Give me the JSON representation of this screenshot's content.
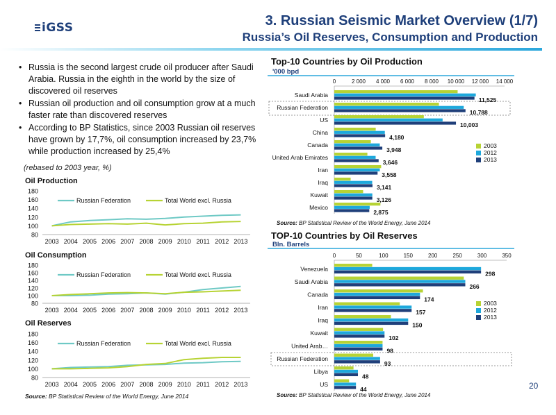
{
  "header": {
    "logo": "iGSS",
    "title": "3. Russian Seismic Market Overview (1/7)",
    "subtitle": "Russia’s Oil Reserves, Consumption and Production",
    "page_number": "20"
  },
  "bullets": [
    "Russia is the second largest crude oil producer after Saudi Arabia. Russia in the eighth in the world by the size of discovered oil reserves",
    "Russian oil production and oil consumption grow at a much faster rate than discovered reserves",
    "According to BP Statistics, since 2003 Russian oil reserves have grown by 17,7%, oil consumption increased by 23,7% while production increased by 25,4%"
  ],
  "rebased_note": "(rebased to 2003 year, %)",
  "line_source": {
    "prefix": "Source:",
    "text": " BP Statistical Review of the World Energy, June 2014"
  },
  "colors": {
    "russia": "#6ec9c5",
    "world": "#b7d334",
    "c2003": "#b7d334",
    "c2012": "#1ea8dc",
    "c2013": "#1f3f7a",
    "navy": "#1e3f7a"
  },
  "chart_data": [
    {
      "type": "line",
      "title": "Oil Production",
      "x": [
        "2003",
        "2004",
        "2005",
        "2006",
        "2007",
        "2008",
        "2009",
        "2010",
        "2011",
        "2012",
        "2013"
      ],
      "ylim": [
        80,
        180
      ],
      "yticks": [
        "80",
        "100",
        "120",
        "140",
        "160",
        "180"
      ],
      "legend": "top",
      "series": [
        {
          "name": "Russian Federation",
          "values": [
            100,
            109,
            112,
            114,
            116,
            115,
            117,
            120,
            122,
            124,
            125
          ]
        },
        {
          "name": "Total World excl. Russia",
          "values": [
            100,
            103,
            104,
            105,
            104,
            106,
            102,
            105,
            106,
            109,
            110
          ]
        }
      ]
    },
    {
      "type": "line",
      "title": "Oil Consumption",
      "x": [
        "2003",
        "2004",
        "2005",
        "2006",
        "2007",
        "2008",
        "2009",
        "2010",
        "2011",
        "2012",
        "2013"
      ],
      "ylim": [
        80,
        180
      ],
      "yticks": [
        "80",
        "100",
        "120",
        "140",
        "160",
        "180"
      ],
      "legend": "top",
      "series": [
        {
          "name": "Russian Federation",
          "values": [
            100,
            100,
            101,
            104,
            105,
            107,
            104,
            109,
            116,
            120,
            124
          ]
        },
        {
          "name": "Total World excl. Russia",
          "values": [
            100,
            103,
            105,
            107,
            108,
            107,
            105,
            109,
            110,
            112,
            114
          ]
        }
      ]
    },
    {
      "type": "line",
      "title": "Oil Reserves",
      "x": [
        "2003",
        "2004",
        "2005",
        "2006",
        "2007",
        "2008",
        "2009",
        "2010",
        "2011",
        "2012",
        "2013"
      ],
      "ylim": [
        80,
        180
      ],
      "yticks": [
        "80",
        "100",
        "120",
        "140",
        "160",
        "180"
      ],
      "legend": "top",
      "series": [
        {
          "name": "Russian Federation",
          "values": [
            100,
            103,
            104,
            105,
            108,
            109,
            110,
            113,
            114,
            116,
            117
          ]
        },
        {
          "name": "Total World excl. Russia",
          "values": [
            100,
            100,
            101,
            102,
            105,
            110,
            112,
            121,
            124,
            126,
            126
          ]
        }
      ]
    },
    {
      "type": "bar",
      "orientation": "horizontal",
      "title": "Top-10 Countries by Oil Production",
      "subtitle": "'000 bpd",
      "categories": [
        "Saudi Arabia",
        "Russian Federation",
        "US",
        "China",
        "Canada",
        "United Arab Emirates",
        "Iran",
        "Iraq",
        "Kuwait",
        "Mexico"
      ],
      "highlight": "Russian Federation",
      "xlim": [
        0,
        14000
      ],
      "xticks": [
        "0",
        "2 000",
        "4 000",
        "6 000",
        "8 000",
        "10 000",
        "12 000",
        "14 000"
      ],
      "legend": "right",
      "series": [
        {
          "name": "2003",
          "values": [
            10141,
            8602,
            7362,
            3406,
            3004,
            2720,
            3852,
            1344,
            2370,
            3789
          ]
        },
        {
          "name": "2012",
          "values": [
            11635,
            10643,
            8905,
            4155,
            3740,
            3399,
            3742,
            3116,
            3127,
            2911
          ]
        },
        {
          "name": "2013",
          "values": [
            11525,
            10788,
            10003,
            4180,
            3948,
            3646,
            3558,
            3141,
            3126,
            2875
          ]
        }
      ],
      "labels": [
        "11,525",
        "10,788",
        "10,003",
        "4,180",
        "3,948",
        "3,646",
        "3,558",
        "3,141",
        "3,126",
        "2,875"
      ],
      "source": {
        "prefix": "Source:",
        "text": " BP Statistical Review of the World Energy, June 2014"
      }
    },
    {
      "type": "bar",
      "orientation": "horizontal",
      "title": "TOP-10 Countries by Oil Reserves",
      "subtitle": "Bln. Barrels",
      "categories": [
        "Venezuela",
        "Saudi Arabia",
        "Canada",
        "Iran",
        "Iraq",
        "Kuwait",
        "United Arab…",
        "Russian Federation",
        "Libya",
        "US"
      ],
      "highlight": "Russian Federation",
      "xlim": [
        0,
        350
      ],
      "xticks": [
        "0",
        "50",
        "100",
        "150",
        "200",
        "250",
        "300",
        "350"
      ],
      "legend": "right",
      "series": [
        {
          "name": "2003",
          "values": [
            77,
            263,
            180,
            133,
            115,
            99,
            98,
            79,
            39,
            30
          ]
        },
        {
          "name": "2012",
          "values": [
            298,
            266,
            174,
            157,
            150,
            102,
            98,
            93,
            48,
            44
          ]
        },
        {
          "name": "2013",
          "values": [
            298,
            266,
            174,
            157,
            150,
            102,
            98,
            93,
            48,
            44
          ]
        }
      ],
      "labels": [
        "298",
        "266",
        "174",
        "157",
        "150",
        "102",
        "98",
        "93",
        "48",
        "44"
      ],
      "source": {
        "prefix": "Source:",
        "text": " BP Statistical Review of the World Energy, June 2014"
      }
    }
  ]
}
